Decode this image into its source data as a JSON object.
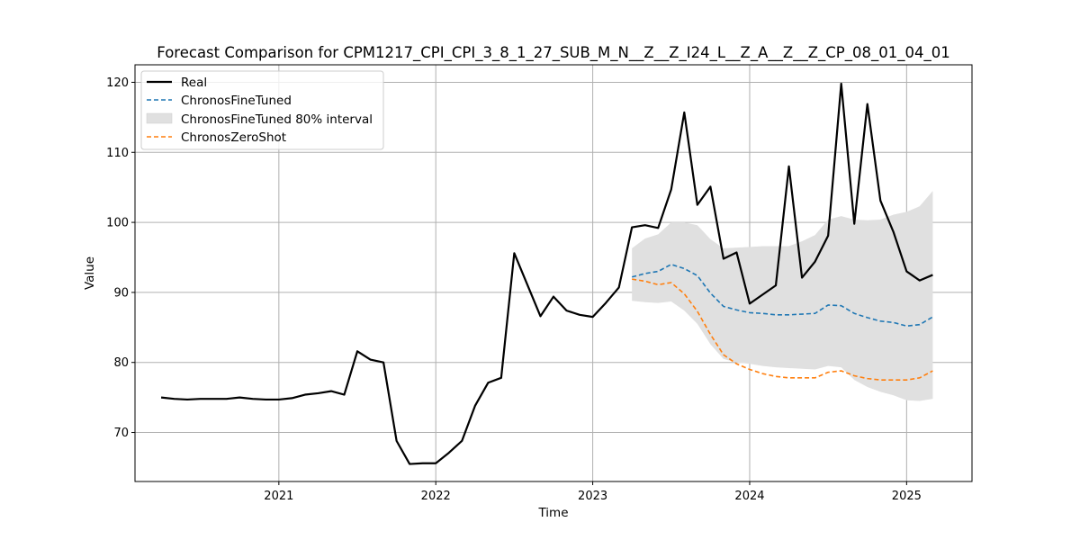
{
  "chart_data": {
    "type": "line",
    "title": "Forecast Comparison for CPM1217_CPI_CPI_3_8_1_27_SUB_M_N__Z__Z_I24_L__Z_A__Z__Z_CP_08_01_04_01",
    "xlabel": "Time",
    "ylabel": "Value",
    "xlim": [
      "2020-02-01",
      "2025-06-01"
    ],
    "ylim": [
      63,
      122.5
    ],
    "x_ticks": [
      "2021",
      "2022",
      "2023",
      "2024",
      "2025"
    ],
    "y_ticks": [
      70,
      80,
      90,
      100,
      110,
      120
    ],
    "grid": true,
    "legend_position": "top-left",
    "colors": {
      "real": "#000000",
      "finetuned": "#1f77b4",
      "zeroshot": "#ff7f0e",
      "interval": "#e0e0e0",
      "grid": "#b0b0b0"
    },
    "series": [
      {
        "name": "Real",
        "style": "solid",
        "x": [
          "2020-04",
          "2020-05",
          "2020-06",
          "2020-07",
          "2020-08",
          "2020-09",
          "2020-10",
          "2020-11",
          "2020-12",
          "2021-01",
          "2021-02",
          "2021-03",
          "2021-04",
          "2021-05",
          "2021-06",
          "2021-07",
          "2021-08",
          "2021-09",
          "2021-10",
          "2021-11",
          "2021-12",
          "2022-01",
          "2022-02",
          "2022-03",
          "2022-04",
          "2022-05",
          "2022-06",
          "2022-07",
          "2022-08",
          "2022-09",
          "2022-10",
          "2022-11",
          "2022-12",
          "2023-01",
          "2023-02",
          "2023-03",
          "2023-04",
          "2023-05",
          "2023-06",
          "2023-07",
          "2023-08",
          "2023-09",
          "2023-10",
          "2023-11",
          "2023-12",
          "2024-01",
          "2024-02",
          "2024-03",
          "2024-04",
          "2024-05",
          "2024-06",
          "2024-07",
          "2024-08",
          "2024-09",
          "2024-10",
          "2024-11",
          "2024-12",
          "2025-01",
          "2025-02",
          "2025-03"
        ],
        "values": [
          75.0,
          74.8,
          74.7,
          74.8,
          74.8,
          74.8,
          75.0,
          74.8,
          74.7,
          74.7,
          74.9,
          75.4,
          75.6,
          75.9,
          75.4,
          81.6,
          80.4,
          80.0,
          68.8,
          65.5,
          65.6,
          65.6,
          67.1,
          68.8,
          73.8,
          77.1,
          77.8,
          95.6,
          91.1,
          86.6,
          89.4,
          87.4,
          86.8,
          86.5,
          88.5,
          90.7,
          99.3,
          99.6,
          99.2,
          104.7,
          115.7,
          102.5,
          105.1,
          94.8,
          95.7,
          88.4,
          89.7,
          91.0,
          108.0,
          92.1,
          94.4,
          98.1,
          119.8,
          99.8,
          116.9,
          103.1,
          98.6,
          93.0,
          91.7,
          92.5
        ]
      },
      {
        "name": "ChronosFineTuned",
        "style": "dashed",
        "x": [
          "2023-04",
          "2023-05",
          "2023-06",
          "2023-07",
          "2023-08",
          "2023-09",
          "2023-10",
          "2023-11",
          "2023-12",
          "2024-01",
          "2024-02",
          "2024-03",
          "2024-04",
          "2024-05",
          "2024-06",
          "2024-07",
          "2024-08",
          "2024-09",
          "2024-10",
          "2024-11",
          "2024-12",
          "2025-01",
          "2025-02",
          "2025-03"
        ],
        "values": [
          92.2,
          92.7,
          93.0,
          94.0,
          93.4,
          92.4,
          89.9,
          88.0,
          87.5,
          87.1,
          87.0,
          86.8,
          86.8,
          86.9,
          87.0,
          88.2,
          88.1,
          87.0,
          86.4,
          85.9,
          85.7,
          85.2,
          85.4,
          86.5
        ]
      },
      {
        "name": "ChronosFineTuned 80% interval",
        "style": "band",
        "x": [
          "2023-04",
          "2023-05",
          "2023-06",
          "2023-07",
          "2023-08",
          "2023-09",
          "2023-10",
          "2023-11",
          "2023-12",
          "2024-01",
          "2024-02",
          "2024-03",
          "2024-04",
          "2024-05",
          "2024-06",
          "2024-07",
          "2024-08",
          "2024-09",
          "2024-10",
          "2024-11",
          "2024-12",
          "2025-01",
          "2025-02",
          "2025-03"
        ],
        "lower": [
          88.8,
          88.6,
          88.5,
          88.7,
          87.4,
          85.5,
          82.6,
          80.5,
          80.0,
          79.8,
          79.5,
          79.3,
          79.2,
          79.1,
          79.0,
          79.5,
          79.3,
          77.5,
          76.5,
          75.8,
          75.3,
          74.6,
          74.5,
          74.8
        ],
        "upper": [
          96.3,
          97.7,
          98.3,
          100.0,
          100.0,
          99.6,
          97.6,
          96.3,
          96.4,
          96.5,
          96.6,
          96.6,
          96.6,
          97.3,
          98.2,
          100.4,
          100.9,
          100.4,
          100.3,
          100.4,
          101.1,
          101.5,
          102.3,
          104.5
        ]
      },
      {
        "name": "ChronosZeroShot",
        "style": "dashed",
        "x": [
          "2023-04",
          "2023-05",
          "2023-06",
          "2023-07",
          "2023-08",
          "2023-09",
          "2023-10",
          "2023-11",
          "2023-12",
          "2024-01",
          "2024-02",
          "2024-03",
          "2024-04",
          "2024-05",
          "2024-06",
          "2024-07",
          "2024-08",
          "2024-09",
          "2024-10",
          "2024-11",
          "2024-12",
          "2025-01",
          "2025-02",
          "2025-03"
        ],
        "values": [
          91.9,
          91.6,
          91.1,
          91.4,
          89.8,
          87.3,
          84.0,
          81.1,
          79.8,
          79.0,
          78.4,
          78.0,
          77.8,
          77.8,
          77.8,
          78.6,
          78.8,
          78.1,
          77.7,
          77.5,
          77.5,
          77.5,
          77.8,
          78.8
        ]
      }
    ]
  }
}
